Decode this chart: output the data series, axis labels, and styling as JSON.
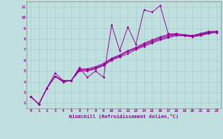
{
  "title": "",
  "xlabel": "Windchill (Refroidissement éolien,°C)",
  "ylabel": "",
  "bg_color": "#c0e0e0",
  "line_color": "#990099",
  "xlim": [
    -0.5,
    23.5
  ],
  "ylim": [
    1.5,
    11.5
  ],
  "xticks": [
    0,
    1,
    2,
    3,
    4,
    5,
    6,
    7,
    8,
    9,
    10,
    11,
    12,
    13,
    14,
    15,
    16,
    17,
    18,
    19,
    20,
    21,
    22,
    23
  ],
  "yticks": [
    2,
    3,
    4,
    5,
    6,
    7,
    8,
    9,
    10,
    11
  ],
  "series": [
    {
      "x": [
        0,
        1,
        2,
        3,
        4,
        5,
        6,
        7,
        8,
        9,
        10,
        11,
        12,
        13,
        14,
        15,
        16,
        17,
        18,
        19,
        20,
        21,
        22,
        23
      ],
      "y": [
        2.6,
        1.9,
        3.4,
        4.8,
        4.1,
        4.1,
        5.3,
        4.4,
        5.0,
        4.4,
        9.3,
        6.9,
        9.1,
        7.5,
        10.7,
        10.5,
        11.1,
        8.5,
        8.4,
        8.3,
        8.3,
        8.5,
        8.7,
        8.7
      ]
    },
    {
      "x": [
        0,
        1,
        2,
        3,
        4,
        5,
        6,
        7,
        8,
        9,
        10,
        11,
        12,
        13,
        14,
        15,
        16,
        17,
        18,
        19,
        20,
        21,
        22,
        23
      ],
      "y": [
        2.6,
        1.9,
        3.4,
        4.5,
        4.0,
        4.1,
        5.0,
        5.0,
        5.2,
        5.5,
        6.0,
        6.3,
        6.6,
        7.0,
        7.3,
        7.6,
        7.9,
        8.1,
        8.3,
        8.3,
        8.2,
        8.3,
        8.5,
        8.6
      ]
    },
    {
      "x": [
        0,
        1,
        2,
        3,
        4,
        5,
        6,
        7,
        8,
        9,
        10,
        11,
        12,
        13,
        14,
        15,
        16,
        17,
        18,
        19,
        20,
        21,
        22,
        23
      ],
      "y": [
        2.6,
        1.9,
        3.4,
        4.5,
        4.0,
        4.1,
        5.1,
        5.1,
        5.3,
        5.6,
        6.1,
        6.4,
        6.8,
        7.1,
        7.5,
        7.8,
        8.1,
        8.3,
        8.4,
        8.3,
        8.3,
        8.4,
        8.6,
        8.7
      ]
    },
    {
      "x": [
        0,
        1,
        2,
        3,
        4,
        5,
        6,
        7,
        8,
        9,
        10,
        11,
        12,
        13,
        14,
        15,
        16,
        17,
        18,
        19,
        20,
        21,
        22,
        23
      ],
      "y": [
        2.6,
        1.9,
        3.4,
        4.5,
        4.1,
        4.1,
        5.2,
        5.2,
        5.4,
        5.7,
        6.2,
        6.5,
        6.9,
        7.2,
        7.6,
        7.9,
        8.2,
        8.4,
        8.5,
        8.4,
        8.3,
        8.5,
        8.6,
        8.7
      ]
    },
    {
      "x": [
        0,
        1,
        2,
        3,
        4,
        5,
        6,
        7,
        8,
        9,
        10,
        11,
        12,
        13,
        14,
        15,
        16,
        17,
        18,
        19,
        20,
        21,
        22,
        23
      ],
      "y": [
        2.6,
        1.9,
        3.4,
        4.5,
        4.0,
        4.1,
        5.1,
        5.1,
        5.2,
        5.6,
        6.1,
        6.4,
        6.8,
        7.1,
        7.4,
        7.7,
        8.0,
        8.2,
        8.4,
        8.3,
        8.2,
        8.4,
        8.5,
        8.6
      ]
    }
  ]
}
